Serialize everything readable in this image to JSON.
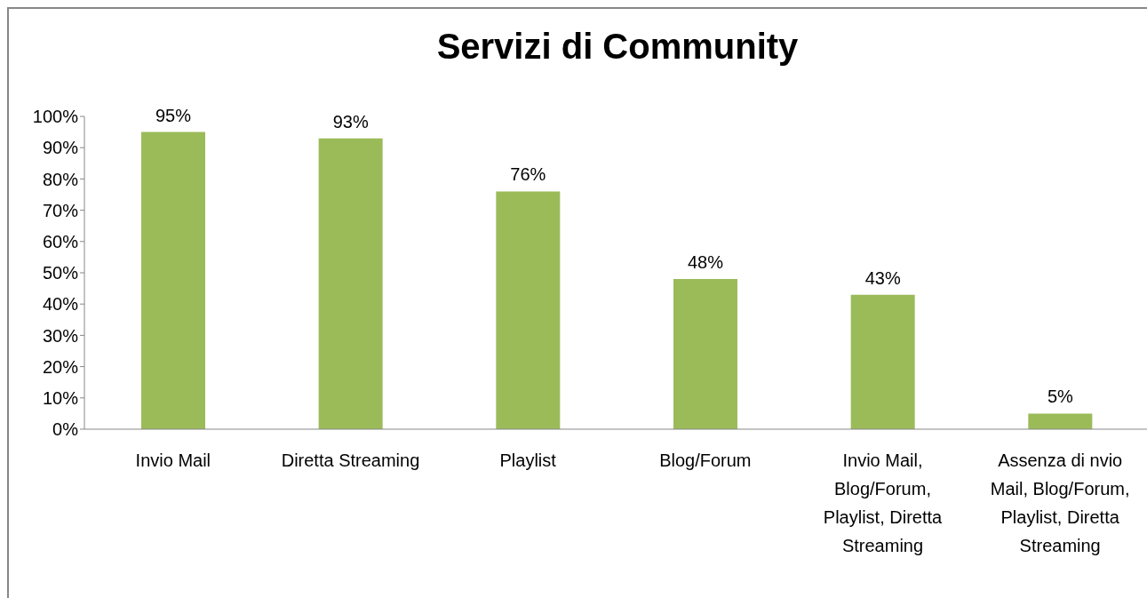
{
  "chart_data": {
    "type": "bar",
    "title": "Servizi di Community",
    "categories": [
      "Invio Mail",
      "Diretta Streaming",
      "Playlist",
      "Blog/Forum",
      "Invio Mail, Blog/Forum, Playlist, Diretta Streaming",
      "Assenza di nvio Mail, Blog/Forum, Playlist, Diretta Streaming"
    ],
    "values": [
      95,
      93,
      76,
      48,
      43,
      5
    ],
    "value_labels": [
      "95%",
      "93%",
      "76%",
      "48%",
      "43%",
      "5%"
    ],
    "color": "#9bbb59",
    "ylim": [
      0,
      100
    ],
    "yticks": [
      {
        "value": 0,
        "label": "0%"
      },
      {
        "value": 10,
        "label": "10%"
      },
      {
        "value": 20,
        "label": "20%"
      },
      {
        "value": 30,
        "label": "30%"
      },
      {
        "value": 40,
        "label": "40%"
      },
      {
        "value": 50,
        "label": "50%"
      },
      {
        "value": 60,
        "label": "60%"
      },
      {
        "value": 70,
        "label": "70%"
      },
      {
        "value": 80,
        "label": "80%"
      },
      {
        "value": 90,
        "label": "90%"
      },
      {
        "value": 100,
        "label": "100%"
      }
    ],
    "grid": false,
    "legend": false
  }
}
